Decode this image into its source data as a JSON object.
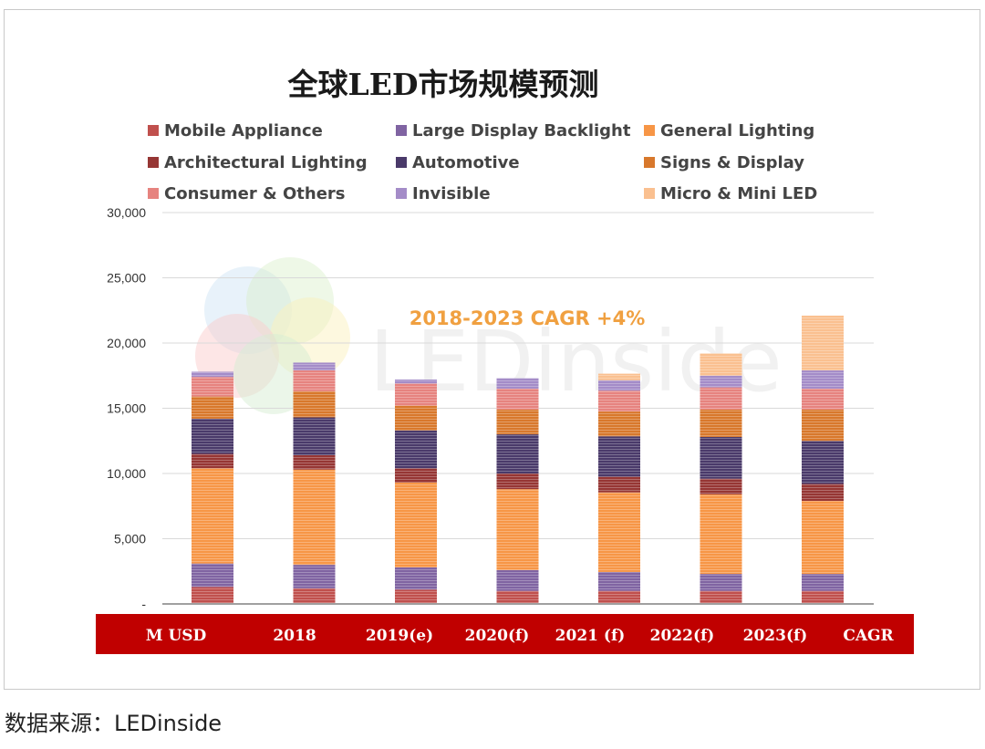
{
  "chart_data": {
    "type": "bar",
    "stacked": true,
    "title": "全球LED市场规模预测",
    "annotation": "2018-2023 CAGR +4%",
    "unit_label": "M USD",
    "categories": [
      "2018",
      "2019(e)",
      "2020(f)",
      "2021 (f)",
      "2022(f)",
      "2023(f)",
      "CAGR"
    ],
    "bar_categories": [
      "M USD",
      "2018",
      "2019(e)",
      "2020(f)",
      "2021 (f)",
      "2022(f)",
      "2023(f)"
    ],
    "yticks": [
      "-",
      "5,000",
      "10,000",
      "15,000",
      "20,000",
      "25,000",
      "30,000"
    ],
    "ylim": [
      0,
      30000
    ],
    "grid": true,
    "legend_position": "top",
    "series": [
      {
        "name": "Mobile Appliance",
        "color": "#c0504d",
        "values": [
          1300,
          1200,
          1100,
          1000,
          1000,
          1000,
          1000
        ]
      },
      {
        "name": "Large Display Backlight",
        "color": "#8064a2",
        "values": [
          1800,
          1800,
          1700,
          1600,
          1450,
          1300,
          1300
        ]
      },
      {
        "name": "General Lighting",
        "color": "#f79646",
        "values": [
          7300,
          7300,
          6500,
          6200,
          6100,
          6100,
          5600
        ]
      },
      {
        "name": "Architectural Lighting",
        "color": "#963634",
        "values": [
          1100,
          1100,
          1100,
          1200,
          1200,
          1200,
          1300
        ]
      },
      {
        "name": "Automotive",
        "color": "#4a3a6a",
        "values": [
          2700,
          2900,
          2900,
          3000,
          3100,
          3200,
          3300
        ]
      },
      {
        "name": "Signs & Display",
        "color": "#d8782c",
        "values": [
          1700,
          2000,
          1900,
          1900,
          1900,
          2100,
          2400
        ]
      },
      {
        "name": "Consumer & Others",
        "color": "#e6837f",
        "values": [
          1500,
          1600,
          1700,
          1600,
          1600,
          1700,
          1600
        ]
      },
      {
        "name": "Invisible",
        "color": "#a48cc8",
        "values": [
          400,
          600,
          300,
          800,
          800,
          900,
          1400
        ]
      },
      {
        "name": "Micro & Mini LED",
        "color": "#fac090",
        "values": [
          0,
          0,
          0,
          0,
          500,
          1700,
          4200
        ]
      }
    ]
  },
  "source": "数据来源：LEDinside",
  "watermark": {
    "text": "LEDinside"
  }
}
